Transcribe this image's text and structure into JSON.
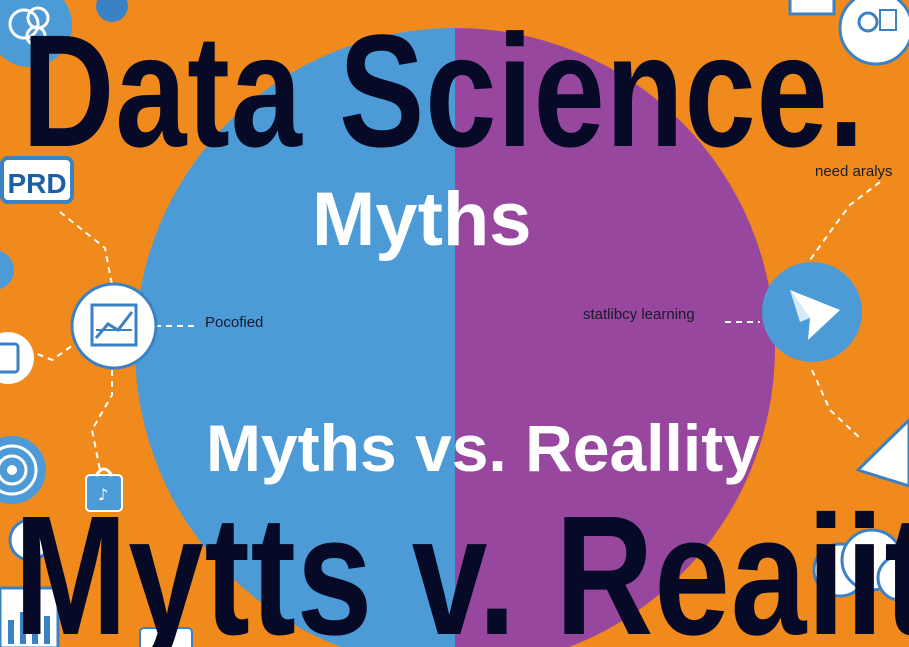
{
  "headline_top": "Data Science.",
  "headline_bottom": "Mytts v. Reaiity",
  "circle_title": "Myths",
  "circle_subtitle": "Myths vs. Reallity",
  "label_left": "Pocofied",
  "label_right": "statlibcy learning",
  "label_top_right": "need aralys",
  "badge_prd": "PRD",
  "colors": {
    "background": "#f08a1c",
    "circle_left": "#4d9bd6",
    "circle_right": "#98479f",
    "title_dark": "#060a26",
    "icon_blue": "#3b82c4"
  },
  "icons": [
    "brain-icon",
    "prd-badge-icon",
    "line-chart-icon",
    "device-icon",
    "target-icon",
    "shopping-bag-icon",
    "bar-chart-icon",
    "paper-plane-icon",
    "person-chart-icon",
    "cloud-icon",
    "book-icon"
  ]
}
